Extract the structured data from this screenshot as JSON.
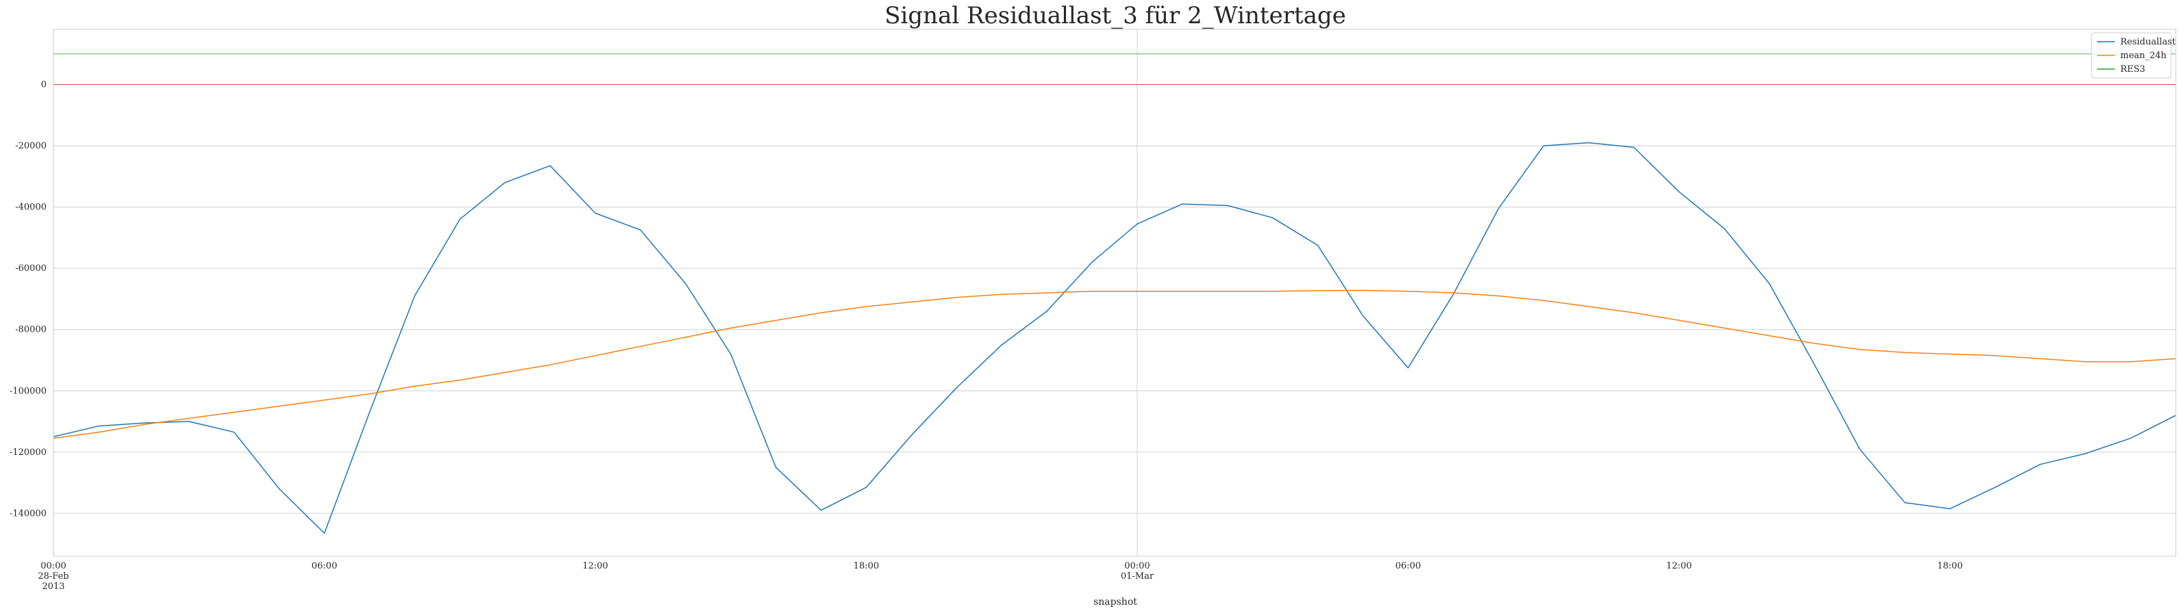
{
  "chart_data": {
    "type": "line",
    "title": "Signal Residuallast_3 für 2_Wintertage",
    "xlabel": "snapshot",
    "ylabel": "",
    "x_start": "2013-02-28 00:00",
    "x_end": "2013-03-01 23:00",
    "x_step": "1h",
    "x_ticks": [
      {
        "hour": 0,
        "lines": [
          "00:00",
          "28-Feb",
          "2013"
        ]
      },
      {
        "hour": 6,
        "lines": [
          "06:00"
        ]
      },
      {
        "hour": 12,
        "lines": [
          "12:00"
        ]
      },
      {
        "hour": 18,
        "lines": [
          "18:00"
        ]
      },
      {
        "hour": 24,
        "lines": [
          "00:00",
          "01-Mar"
        ]
      },
      {
        "hour": 30,
        "lines": [
          "06:00"
        ]
      },
      {
        "hour": 36,
        "lines": [
          "12:00"
        ]
      },
      {
        "hour": 42,
        "lines": [
          "18:00"
        ]
      }
    ],
    "y_ticks": [
      0,
      -20000,
      -40000,
      -60000,
      -80000,
      -100000,
      -120000,
      -140000
    ],
    "ylim": [
      -154000,
      18000
    ],
    "grid": true,
    "legend_position": "top-right",
    "reference_lines": [
      {
        "value": 10000,
        "color": "#2ca02c"
      },
      {
        "value": 0,
        "color": "#d62728"
      }
    ],
    "series": [
      {
        "name": "Residuallast",
        "color": "#1f77b4",
        "values": [
          -115000,
          -111500,
          -110500,
          -110000,
          -113500,
          -132000,
          -146500,
          -107000,
          -69000,
          -44000,
          -32000,
          -26500,
          -42000,
          -47500,
          -65000,
          -88000,
          -125000,
          -139000,
          -131500,
          -114500,
          -99000,
          -85000,
          -74000,
          -58000,
          -45500,
          -39000,
          -39500,
          -43500,
          -52500,
          -75500,
          -92500,
          -68500,
          -40500,
          -20000,
          -19000,
          -20500,
          -35000,
          -47000,
          -65000,
          -91500,
          -119000,
          -136500,
          -138500,
          -131500,
          -124000,
          -120500,
          -115500,
          -108000
        ]
      },
      {
        "name": "mean_24h",
        "color": "#ff7f0e",
        "values": [
          -115500,
          -113500,
          -111000,
          -109000,
          -107000,
          -105000,
          -103000,
          -101000,
          -98500,
          -96500,
          -94000,
          -91500,
          -88500,
          -85500,
          -82500,
          -79500,
          -77000,
          -74500,
          -72500,
          -71000,
          -69500,
          -68500,
          -68000,
          -67500,
          -67500,
          -67500,
          -67500,
          -67500,
          -67300,
          -67200,
          -67500,
          -68000,
          -69000,
          -70500,
          -72500,
          -74500,
          -77000,
          -79500,
          -82000,
          -84500,
          -86500,
          -87500,
          -88000,
          -88500,
          -89500,
          -90500,
          -90500,
          -89500
        ]
      },
      {
        "name": "RES3",
        "color": "#2ca02c",
        "values": []
      }
    ]
  }
}
